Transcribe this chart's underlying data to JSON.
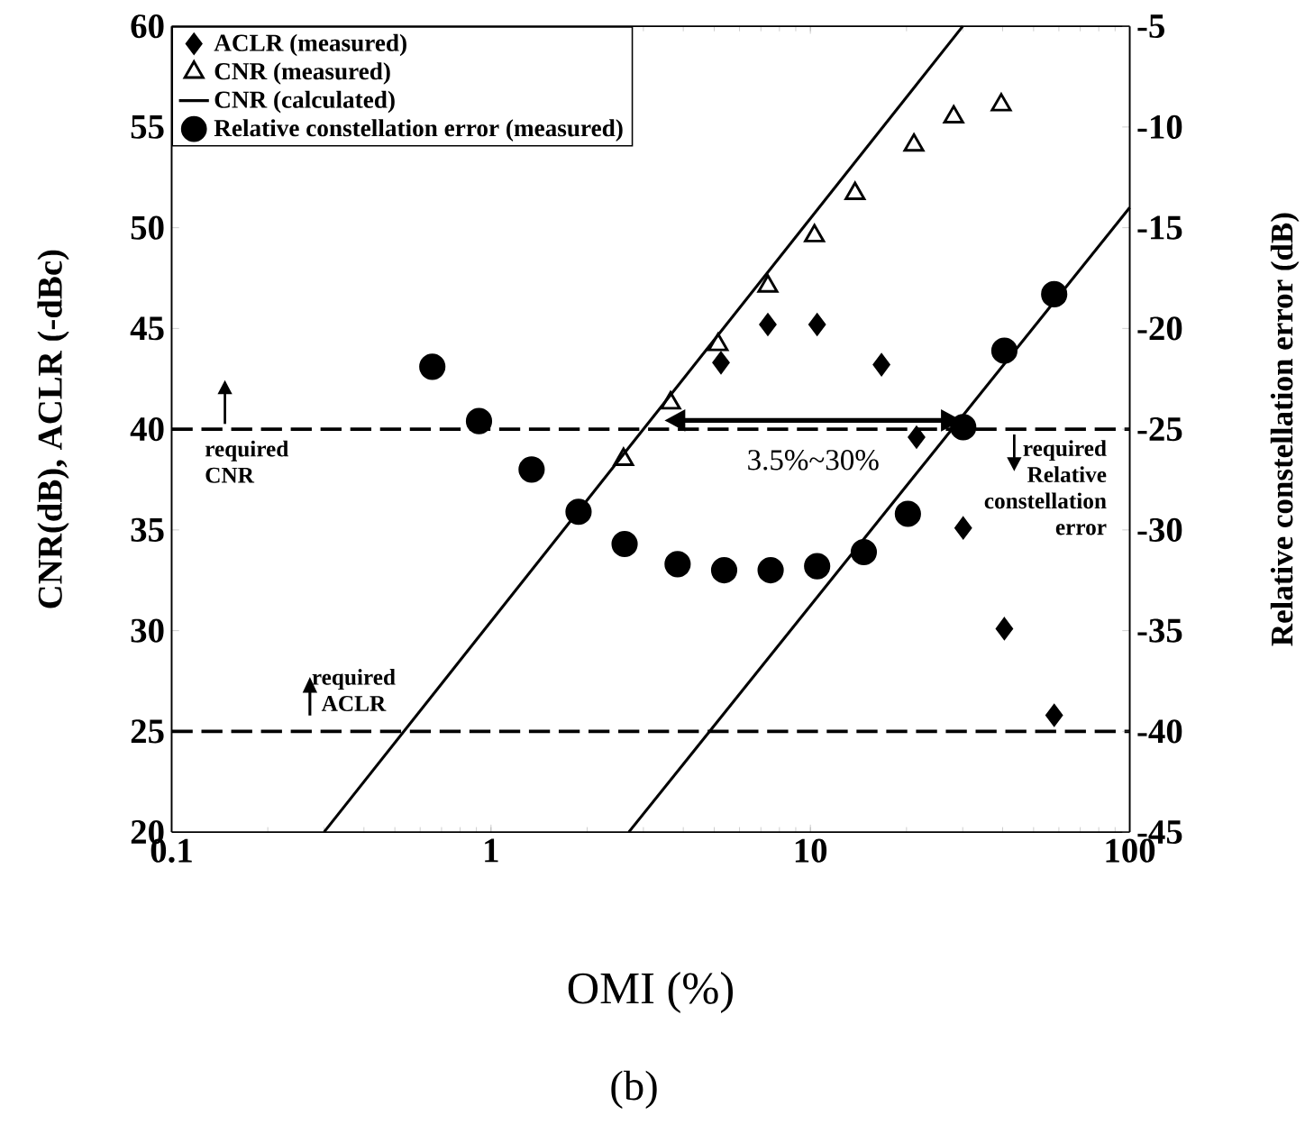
{
  "chart_data": {
    "type": "scatter",
    "xlabel": "OMI (%)",
    "ylabel": "CNR(dB), ACLR (-dBc)",
    "y2label": "Relative constellation error  (dB)",
    "log": "x",
    "xlim": [
      0.1,
      100
    ],
    "xticks": [
      0.1,
      1,
      10,
      100
    ],
    "ylim": [
      20,
      60
    ],
    "yticks": [
      20,
      25,
      30,
      35,
      40,
      45,
      50,
      55,
      60
    ],
    "y2lim": [
      -45,
      -5
    ],
    "y2ticks": [
      -45,
      -40,
      -35,
      -30,
      -25,
      -20,
      -15,
      -10,
      -5
    ],
    "legend": "top left",
    "series": [
      {
        "name": "ACLR (measured)",
        "marker": "diamond",
        "color": "#000000",
        "x": [
          5.25,
          7.36,
          10.5,
          16.7,
          21.5,
          30.1,
          40.5,
          58
        ],
        "values": [
          43.3,
          45.2,
          45.2,
          43.2,
          39.6,
          35.1,
          30.1,
          25.8
        ]
      },
      {
        "name": "CNR (measured)",
        "marker": "triangle",
        "color": "#000000",
        "x": [
          2.6,
          3.65,
          5.14,
          7.36,
          10.3,
          13.8,
          21.1,
          28.1,
          39.6
        ],
        "values": [
          38.5,
          41.3,
          44.2,
          47.1,
          49.6,
          51.7,
          54.1,
          55.5,
          56.1
        ]
      },
      {
        "name": "CNR (calculated)",
        "type": "line",
        "marker": "none",
        "line_style": "solid",
        "color": "#000000",
        "x": [
          0.3,
          30
        ],
        "values": [
          20,
          60
        ]
      },
      {
        "type": "line",
        "marker": "none",
        "line_style": "solid",
        "color": "#000000",
        "x": [
          2.7,
          100
        ],
        "values": [
          20,
          51
        ]
      },
      {
        "name": "Relative constellation error (measured)",
        "marker": "circle",
        "axis": "y2",
        "color": "#000000",
        "x": [
          0.655,
          0.917,
          1.34,
          1.88,
          2.62,
          3.84,
          5.37,
          7.51,
          10.5,
          14.7,
          20.2,
          30.1,
          40.5,
          58
        ],
        "values": [
          -21.9,
          -24.6,
          -27,
          -29.1,
          -30.7,
          -31.7,
          -32,
          -32,
          -31.8,
          -31.1,
          -29.2,
          -24.9,
          -21.1,
          -18.3
        ]
      }
    ],
    "ref_lines": [
      {
        "axis": "y",
        "value": 40,
        "label": "required CNR",
        "line_style": "dashed",
        "color": "#000000"
      },
      {
        "axis": "y",
        "value": 25,
        "label": "required ACLR",
        "line_style": "dashed",
        "color": "#000000"
      }
    ],
    "annotations": [
      "required Relative constellation error",
      {
        "text": "3.5%~30%",
        "x": 10.2,
        "y": 40
      },
      "(b)"
    ]
  }
}
